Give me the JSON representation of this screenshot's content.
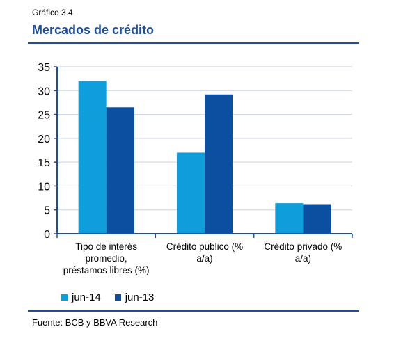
{
  "header": {
    "label": "Gráfico 3.4",
    "title": "Mercados de crédito"
  },
  "source": "Fuente: BCB y BBVA Research",
  "colors": {
    "accent": "#1f4e9c",
    "jun14": "#0d9edb",
    "jun13": "#0b4fa1",
    "grid": "#c8d2de",
    "axis": "#1f4e9c"
  },
  "chart_data": {
    "type": "bar",
    "categories": [
      [
        "Tipo de interés",
        "promedio,",
        "préstamos libres (%)"
      ],
      [
        "Crédito publico (%",
        "a/a)"
      ],
      [
        "Crédito privado (%",
        "a/a)"
      ]
    ],
    "series": [
      {
        "name": "jun-14",
        "values": [
          32.0,
          17.0,
          6.4
        ]
      },
      {
        "name": "jun-13",
        "values": [
          26.5,
          29.2,
          6.2
        ]
      }
    ],
    "ylim": [
      0,
      35
    ],
    "yticks": [
      "0",
      "5",
      "10",
      "15",
      "20",
      "25",
      "30",
      "35"
    ],
    "grid": true,
    "legend": "bottom-left"
  }
}
